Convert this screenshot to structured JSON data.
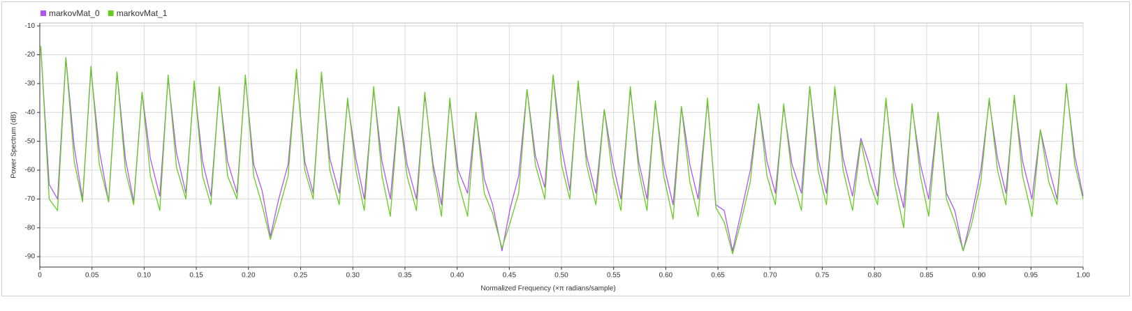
{
  "chart_data": {
    "type": "line",
    "xlabel": "Normalized Frequency (×π radians/sample)",
    "ylabel": "Power Spectrum (dB)",
    "legend": "top-left",
    "grid": true,
    "xlim": [
      0,
      1
    ],
    "ylim": [
      -93.6,
      -9
    ],
    "yticks": [
      -90,
      -80,
      -70,
      -60,
      -50,
      -40,
      -30,
      -20,
      -10
    ],
    "xticks": [
      0,
      0.05,
      {
        "value": 0.1,
        "label": "0.10"
      },
      0.15,
      {
        "value": 0.2,
        "label": "0.20"
      },
      0.25,
      {
        "value": 0.3,
        "label": "0.30"
      },
      0.35,
      {
        "value": 0.4,
        "label": "0.40"
      },
      0.45,
      {
        "value": 0.5,
        "label": "0.50"
      },
      0.55,
      {
        "value": 0.6,
        "label": "0.60"
      },
      0.65,
      {
        "value": 0.7,
        "label": "0.70"
      },
      0.75,
      {
        "value": 0.8,
        "label": "0.80"
      },
      0.85,
      {
        "value": 0.9,
        "label": "0.90"
      },
      0.95,
      {
        "value": 1,
        "label": "1.00"
      }
    ],
    "x": [
      0.001,
      0.009,
      0.017,
      0.025,
      0.033,
      0.041,
      0.049,
      0.057,
      0.066,
      0.074,
      0.082,
      0.09,
      0.098,
      0.106,
      0.115,
      0.123,
      0.131,
      0.14,
      0.148,
      0.156,
      0.164,
      0.172,
      0.18,
      0.189,
      0.197,
      0.205,
      0.213,
      0.221,
      0.229,
      0.238,
      0.246,
      0.254,
      0.262,
      0.27,
      0.278,
      0.287,
      0.295,
      0.303,
      0.311,
      0.32,
      0.328,
      0.336,
      0.344,
      0.352,
      0.361,
      0.369,
      0.377,
      0.385,
      0.393,
      0.401,
      0.41,
      0.418,
      0.426,
      0.434,
      0.443,
      0.451,
      0.459,
      0.467,
      0.475,
      0.484,
      0.492,
      0.5,
      0.508,
      0.516,
      0.524,
      0.533,
      0.541,
      0.549,
      0.557,
      0.566,
      0.574,
      0.582,
      0.59,
      0.598,
      0.607,
      0.615,
      0.623,
      0.631,
      0.64,
      0.648,
      0.656,
      0.664,
      0.672,
      0.681,
      0.689,
      0.697,
      0.705,
      0.713,
      0.721,
      0.73,
      0.738,
      0.746,
      0.754,
      0.762,
      0.77,
      0.779,
      0.787,
      0.795,
      0.803,
      0.811,
      0.819,
      0.828,
      0.836,
      0.844,
      0.852,
      0.861,
      0.869,
      0.877,
      0.885,
      0.893,
      0.902,
      0.91,
      0.918,
      0.926,
      0.934,
      0.942,
      0.951,
      0.959,
      0.967,
      0.975,
      0.984,
      0.992,
      1.0
    ],
    "series": [
      {
        "name": "markovMat_0",
        "color": "#b055f5",
        "values": [
          -18,
          -65,
          -70,
          -21,
          -52,
          -70,
          -25,
          -53,
          -71,
          -26,
          -56,
          -71,
          -33,
          -56,
          -69,
          -28,
          -54,
          -68,
          -30,
          -57,
          -69,
          -32,
          -57,
          -68,
          -28,
          -58,
          -67,
          -83,
          -70,
          -58,
          -26,
          -57,
          -68,
          -27,
          -56,
          -68,
          -36,
          -56,
          -70,
          -32,
          -57,
          -70,
          -38,
          -58,
          -70,
          -34,
          -58,
          -72,
          -36,
          -60,
          -68,
          -40,
          -63,
          -72,
          -88,
          -73,
          -62,
          -32,
          -55,
          -66,
          -27,
          -52,
          -67,
          -30,
          -55,
          -68,
          -39,
          -57,
          -70,
          -32,
          -57,
          -70,
          -37,
          -58,
          -72,
          -38,
          -58,
          -70,
          -36,
          -72,
          -74,
          -88,
          -75,
          -60,
          -37,
          -57,
          -68,
          -38,
          -58,
          -68,
          -31,
          -56,
          -68,
          -32,
          -56,
          -69,
          -49,
          -58,
          -69,
          -36,
          -60,
          -73,
          -38,
          -58,
          -70,
          -40,
          -68,
          -74,
          -88,
          -76,
          -60,
          -36,
          -56,
          -68,
          -35,
          -57,
          -70,
          -46,
          -59,
          -70,
          -31,
          -55,
          -69
        ]
      },
      {
        "name": "markovMat_1",
        "color": "#66cc22",
        "values": [
          -17,
          -70,
          -74,
          -21,
          -57,
          -71,
          -24,
          -58,
          -71,
          -26,
          -60,
          -72,
          -33,
          -62,
          -74,
          -27,
          -59,
          -70,
          -29,
          -62,
          -72,
          -31,
          -62,
          -70,
          -27,
          -62,
          -72,
          -84,
          -74,
          -62,
          -25,
          -60,
          -70,
          -26,
          -60,
          -72,
          -35,
          -60,
          -74,
          -31,
          -62,
          -76,
          -38,
          -62,
          -74,
          -33,
          -60,
          -76,
          -35,
          -64,
          -76,
          -40,
          -68,
          -75,
          -87,
          -78,
          -68,
          -32,
          -58,
          -70,
          -27,
          -58,
          -70,
          -29,
          -58,
          -72,
          -39,
          -62,
          -74,
          -31,
          -60,
          -74,
          -36,
          -62,
          -77,
          -38,
          -64,
          -76,
          -35,
          -73,
          -78,
          -89,
          -78,
          -64,
          -37,
          -62,
          -72,
          -37,
          -62,
          -74,
          -31,
          -60,
          -72,
          -31,
          -60,
          -74,
          -50,
          -64,
          -72,
          -35,
          -64,
          -80,
          -37,
          -62,
          -76,
          -40,
          -70,
          -78,
          -88,
          -79,
          -64,
          -35,
          -60,
          -72,
          -34,
          -62,
          -76,
          -46,
          -64,
          -72,
          -30,
          -58,
          -70
        ]
      }
    ]
  }
}
